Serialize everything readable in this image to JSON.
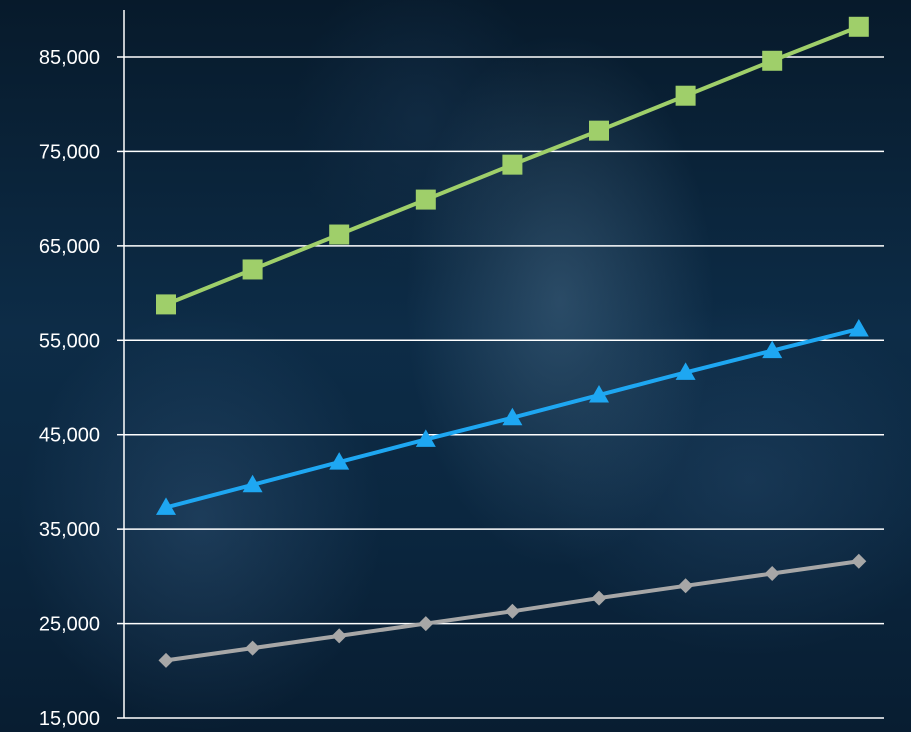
{
  "chart_data": {
    "type": "line",
    "title": "",
    "xlabel": "",
    "ylabel": "",
    "ylim": [
      15000,
      90000
    ],
    "yticks": [
      15000,
      25000,
      35000,
      45000,
      55000,
      65000,
      75000,
      85000
    ],
    "ytick_labels": [
      "15,000",
      "25,000",
      "35,000",
      "45,000",
      "55,000",
      "65,000",
      "75,000",
      "85,000"
    ],
    "x": [
      1,
      2,
      3,
      4,
      5,
      6,
      7,
      8,
      9
    ],
    "grid": true,
    "legend": "none",
    "series": [
      {
        "color": "#9fcf6a",
        "marker": "square",
        "values": [
          58800,
          62500,
          66200,
          69900,
          73600,
          77200,
          80900,
          84600,
          88200
        ]
      },
      {
        "color": "#1ea7f2",
        "marker": "triangle",
        "values": [
          37300,
          39700,
          42100,
          44500,
          46800,
          49200,
          51600,
          53900,
          56200
        ]
      },
      {
        "color": "#a7a7a7",
        "marker": "diamond",
        "values": [
          21100,
          22400,
          23700,
          25000,
          26300,
          27700,
          29000,
          30300,
          31600
        ]
      }
    ]
  }
}
